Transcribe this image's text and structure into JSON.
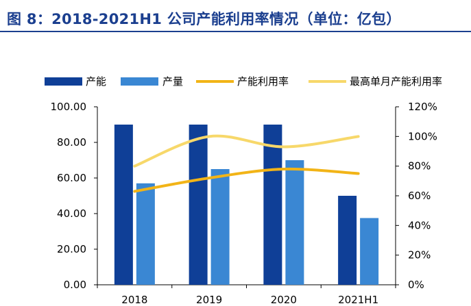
{
  "figure_title": "图 8：2018-2021H1 公司产能利用率情况（单位：亿包）",
  "chart_data": {
    "type": "bar",
    "categories": [
      "2018",
      "2019",
      "2020",
      "2021H1"
    ],
    "series": [
      {
        "name": "产能",
        "kind": "bar",
        "axis": "left",
        "color": "#0f3f97",
        "values": [
          90,
          90,
          90,
          50
        ]
      },
      {
        "name": "产量",
        "kind": "bar",
        "axis": "left",
        "color": "#3a87d3",
        "values": [
          57,
          65,
          70,
          37.5
        ]
      },
      {
        "name": "产能利用率",
        "kind": "line",
        "axis": "right",
        "color": "#f2b417",
        "values": [
          0.63,
          0.72,
          0.78,
          0.75
        ]
      },
      {
        "name": "最高单月产能利用率",
        "kind": "line",
        "axis": "right",
        "color": "#f7d86a",
        "values": [
          0.8,
          1.0,
          0.93,
          1.0
        ]
      }
    ],
    "y_left": {
      "ylim": [
        0,
        100
      ],
      "ticks": [
        "0.00",
        "20.00",
        "40.00",
        "60.00",
        "80.00",
        "100.00"
      ]
    },
    "y_right": {
      "ylim": [
        0,
        1.2
      ],
      "ticks": [
        "0%",
        "20%",
        "40%",
        "60%",
        "80%",
        "100%",
        "120%"
      ]
    },
    "xlabel": "",
    "ylabel": "",
    "grid": false,
    "legend_position": "top"
  }
}
